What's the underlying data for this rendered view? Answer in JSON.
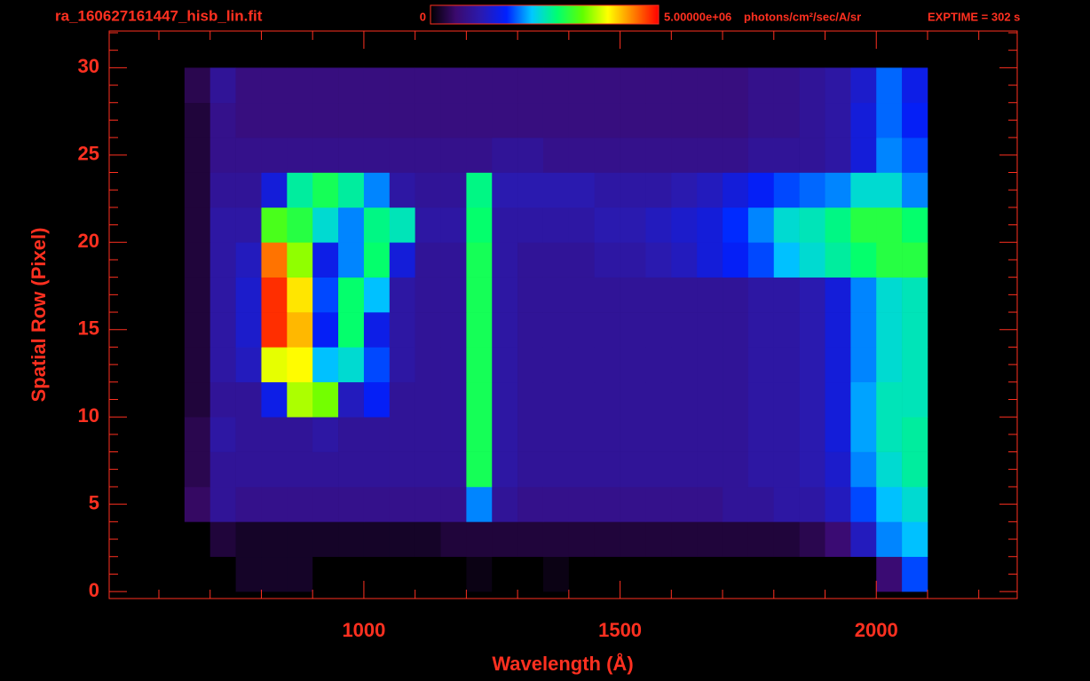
{
  "chart_data": {
    "type": "heatmap",
    "title": "ra_160627161447_hisb_lin.fit",
    "xlabel": "Wavelength (Å)",
    "ylabel": "Spatial Row (Pixel)",
    "clim": [
      0,
      {
        "value": 5000000.0,
        "label": "5.00000e+06"
      }
    ],
    "colorbar_unit": "photons/cm²/sec/A/sr",
    "exptime": "EXPTIME = 302 s",
    "colormap": [
      "#000000",
      "#3b0a6e",
      "#2a1ab0",
      "#0020ff",
      "#00c8ff",
      "#00ff70",
      "#60ff00",
      "#ffff00",
      "#ff8000",
      "#ff0000"
    ],
    "axis_color": "#ff3020",
    "xlim": [
      503,
      2275
    ],
    "ylim": [
      -0.4,
      32.1
    ],
    "xticks": [
      1000,
      1500,
      2000
    ],
    "yticks": [
      0,
      5,
      10,
      15,
      20,
      25,
      30
    ],
    "xminorticks": [
      600,
      700,
      800,
      900,
      1100,
      1200,
      1300,
      1400,
      1600,
      1700,
      1800,
      1900,
      2100,
      2200
    ],
    "yminorticks": [
      1,
      2,
      3,
      4,
      6,
      7,
      8,
      9,
      11,
      12,
      13,
      14,
      16,
      17,
      18,
      19,
      21,
      22,
      23,
      24,
      26,
      27,
      28,
      29,
      31,
      32
    ],
    "x_bins": [
      650,
      700,
      750,
      800,
      850,
      900,
      950,
      1000,
      1050,
      1100,
      1150,
      1200,
      1250,
      1300,
      1350,
      1400,
      1450,
      1500,
      1550,
      1600,
      1650,
      1700,
      1750,
      1800,
      1850,
      1900,
      1950,
      2000,
      2050,
      2100
    ],
    "y_bins": [
      0,
      2,
      4,
      6,
      8,
      10,
      12,
      14,
      16,
      18,
      20,
      22,
      24,
      26,
      28,
      30
    ],
    "z": [
      [
        0,
        0,
        200000.0,
        200000.0,
        200000.0,
        0,
        0,
        0,
        0,
        0,
        0,
        100000.0,
        0,
        0,
        100000.0,
        0,
        0,
        0,
        0,
        0,
        0,
        0,
        0,
        0,
        0,
        0,
        0,
        600000.0,
        1800000.0
      ],
      [
        0,
        300000.0,
        200000.0,
        200000.0,
        200000.0,
        200000.0,
        200000.0,
        200000.0,
        200000.0,
        200000.0,
        300000.0,
        300000.0,
        300000.0,
        300000.0,
        300000.0,
        300000.0,
        300000.0,
        300000.0,
        300000.0,
        300000.0,
        300000.0,
        300000.0,
        300000.0,
        300000.0,
        400000.0,
        600000.0,
        1200000.0,
        2000000.0,
        2200000.0
      ],
      [
        500000.0,
        900000.0,
        800000.0,
        800000.0,
        800000.0,
        800000.0,
        800000.0,
        800000.0,
        800000.0,
        800000.0,
        800000.0,
        2000000.0,
        900000.0,
        800000.0,
        800000.0,
        800000.0,
        800000.0,
        800000.0,
        800000.0,
        800000.0,
        800000.0,
        900000.0,
        900000.0,
        1000000.0,
        1000000.0,
        1200000.0,
        1800000.0,
        2200000.0,
        2400000.0
      ],
      [
        400000.0,
        900000.0,
        900000.0,
        900000.0,
        900000.0,
        900000.0,
        900000.0,
        900000.0,
        900000.0,
        900000.0,
        900000.0,
        2900000.0,
        1000000.0,
        900000.0,
        900000.0,
        900000.0,
        900000.0,
        900000.0,
        900000.0,
        900000.0,
        900000.0,
        900000.0,
        1000000.0,
        1000000.0,
        1100000.0,
        1300000.0,
        2000000.0,
        2400000.0,
        2600000.0
      ],
      [
        400000.0,
        1000000.0,
        900000.0,
        900000.0,
        900000.0,
        1000000.0,
        900000.0,
        900000.0,
        900000.0,
        900000.0,
        900000.0,
        2900000.0,
        1000000.0,
        900000.0,
        900000.0,
        900000.0,
        900000.0,
        900000.0,
        900000.0,
        900000.0,
        900000.0,
        900000.0,
        1000000.0,
        1000000.0,
        1100000.0,
        1400000.0,
        2100000.0,
        2500000.0,
        2600000.0
      ],
      [
        300000.0,
        900000.0,
        900000.0,
        1500000.0,
        3600000.0,
        3400000.0,
        1200000.0,
        1600000.0,
        900000.0,
        900000.0,
        900000.0,
        2900000.0,
        1000000.0,
        900000.0,
        900000.0,
        900000.0,
        900000.0,
        900000.0,
        900000.0,
        900000.0,
        900000.0,
        900000.0,
        1000000.0,
        1000000.0,
        1100000.0,
        1400000.0,
        2100000.0,
        2500000.0,
        2500000.0
      ],
      [
        300000.0,
        1000000.0,
        1200000.0,
        3800000.0,
        3900000.0,
        2200000.0,
        2400000.0,
        1800000.0,
        1000000.0,
        900000.0,
        900000.0,
        2900000.0,
        1000000.0,
        900000.0,
        900000.0,
        900000.0,
        900000.0,
        900000.0,
        900000.0,
        900000.0,
        900000.0,
        900000.0,
        1000000.0,
        1000000.0,
        1100000.0,
        1400000.0,
        2000000.0,
        2400000.0,
        2500000.0
      ],
      [
        300000.0,
        1000000.0,
        1300000.0,
        4800000.0,
        4200000.0,
        1600000.0,
        2800000.0,
        1500000.0,
        1000000.0,
        900000.0,
        900000.0,
        2900000.0,
        1000000.0,
        900000.0,
        900000.0,
        900000.0,
        900000.0,
        900000.0,
        900000.0,
        900000.0,
        900000.0,
        900000.0,
        1000000.0,
        1000000.0,
        1100000.0,
        1400000.0,
        2000000.0,
        2400000.0,
        2500000.0
      ],
      [
        300000.0,
        1000000.0,
        1300000.0,
        4800000.0,
        4000000.0,
        1800000.0,
        2800000.0,
        2200000.0,
        1000000.0,
        900000.0,
        900000.0,
        2900000.0,
        1000000.0,
        900000.0,
        900000.0,
        900000.0,
        900000.0,
        900000.0,
        900000.0,
        900000.0,
        900000.0,
        900000.0,
        1000000.0,
        1000000.0,
        1100000.0,
        1400000.0,
        2000000.0,
        2400000.0,
        2500000.0
      ],
      [
        300000.0,
        1000000.0,
        1200000.0,
        4500000.0,
        3500000.0,
        1500000.0,
        2000000.0,
        2800000.0,
        1400000.0,
        900000.0,
        900000.0,
        2900000.0,
        1000000.0,
        900000.0,
        900000.0,
        900000.0,
        1000000.0,
        1000000.0,
        1100000.0,
        1200000.0,
        1400000.0,
        1600000.0,
        1800000.0,
        2200000.0,
        2400000.0,
        2600000.0,
        2800000.0,
        3000000.0,
        3000000.0
      ],
      [
        300000.0,
        1000000.0,
        1000000.0,
        3200000.0,
        3000000.0,
        2400000.0,
        2000000.0,
        2700000.0,
        2500000.0,
        1000000.0,
        1000000.0,
        2800000.0,
        1000000.0,
        1000000.0,
        1000000.0,
        1000000.0,
        1100000.0,
        1100000.0,
        1200000.0,
        1300000.0,
        1400000.0,
        1700000.0,
        2000000.0,
        2400000.0,
        2500000.0,
        2700000.0,
        3000000.0,
        3000000.0,
        2800000.0
      ],
      [
        300000.0,
        900000.0,
        900000.0,
        1400000.0,
        2600000.0,
        2900000.0,
        2600000.0,
        2000000.0,
        1000000.0,
        900000.0,
        900000.0,
        2700000.0,
        1100000.0,
        1100000.0,
        1100000.0,
        1100000.0,
        1000000.0,
        1000000.0,
        1000000.0,
        1100000.0,
        1200000.0,
        1400000.0,
        1600000.0,
        1800000.0,
        1900000.0,
        2000000.0,
        2400000.0,
        2400000.0,
        2000000.0
      ],
      [
        300000.0,
        800000.0,
        800000.0,
        800000.0,
        800000.0,
        800000.0,
        800000.0,
        800000.0,
        800000.0,
        800000.0,
        800000.0,
        800000.0,
        900000.0,
        900000.0,
        800000.0,
        800000.0,
        800000.0,
        800000.0,
        800000.0,
        800000.0,
        800000.0,
        800000.0,
        900000.0,
        900000.0,
        900000.0,
        1000000.0,
        1400000.0,
        2000000.0,
        1800000.0
      ],
      [
        300000.0,
        800000.0,
        700000.0,
        700000.0,
        700000.0,
        700000.0,
        700000.0,
        700000.0,
        700000.0,
        700000.0,
        700000.0,
        700000.0,
        700000.0,
        700000.0,
        700000.0,
        700000.0,
        700000.0,
        700000.0,
        700000.0,
        700000.0,
        700000.0,
        700000.0,
        800000.0,
        800000.0,
        900000.0,
        1000000.0,
        1400000.0,
        1900000.0,
        1600000.0
      ],
      [
        400000.0,
        900000.0,
        700000.0,
        700000.0,
        700000.0,
        700000.0,
        700000.0,
        700000.0,
        700000.0,
        700000.0,
        700000.0,
        700000.0,
        700000.0,
        700000.0,
        700000.0,
        700000.0,
        700000.0,
        700000.0,
        700000.0,
        700000.0,
        700000.0,
        700000.0,
        800000.0,
        800000.0,
        900000.0,
        1000000.0,
        1300000.0,
        1900000.0,
        1500000.0
      ]
    ]
  }
}
